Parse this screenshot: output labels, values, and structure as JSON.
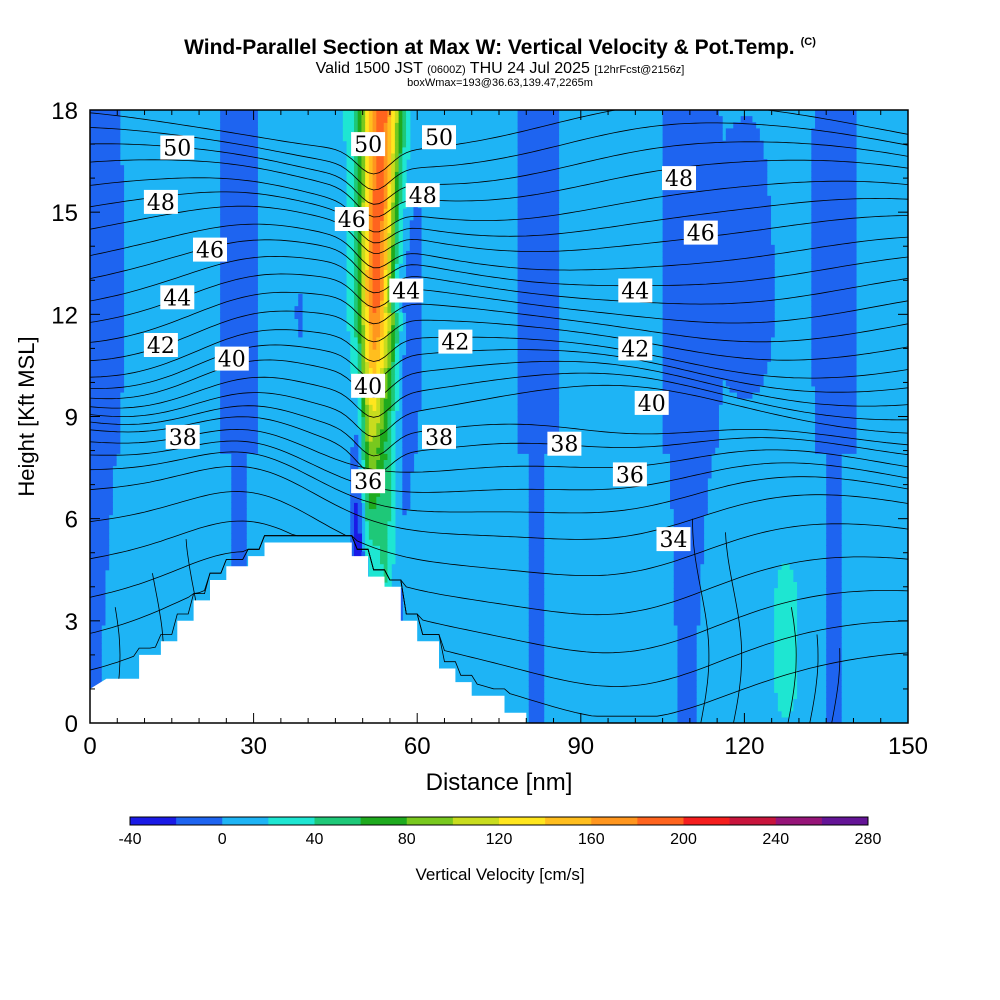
{
  "header": {
    "title": "Wind-Parallel Section at Max W: Vertical Velocity & Pot.Temp.",
    "copyright": "(C)",
    "valid_prefix": "Valid 1500 JST",
    "valid_utc": "(0600Z)",
    "valid_date": "THU 24 Jul 2025",
    "forecast": "[12hrFcst@2156z]",
    "boxwmax": "boxWmax=193@36.63,139.47,2265m"
  },
  "chart_data": {
    "type": "cross-section contour",
    "xlabel": "Distance [nm]",
    "ylabel": "Height [Kft MSL]",
    "xlim": [
      0,
      150
    ],
    "ylim": [
      0,
      18
    ],
    "xticks": [
      0,
      30,
      60,
      90,
      120,
      150
    ],
    "yticks": [
      0,
      3,
      6,
      9,
      12,
      15,
      18
    ],
    "colorbar": {
      "label": "Vertical Velocity [cm/s]",
      "ticks": [
        -40,
        0,
        40,
        80,
        120,
        160,
        200,
        240,
        280
      ],
      "bounds": [
        -40,
        -20,
        0,
        20,
        40,
        60,
        80,
        100,
        120,
        140,
        160,
        180,
        200,
        220,
        240,
        260,
        280
      ],
      "colors": [
        "#1a1ae6",
        "#1e64f0",
        "#1eb4f5",
        "#1ee6d2",
        "#1ec878",
        "#1eaa1e",
        "#78c81e",
        "#c8dc1e",
        "#ffe61e",
        "#ffbe1e",
        "#ff961e",
        "#ff641e",
        "#f51e1e",
        "#c8143c",
        "#961478",
        "#641496"
      ]
    },
    "theta_contour_labels": [
      {
        "label": "50",
        "x": 16,
        "y": 16.9
      },
      {
        "label": "50",
        "x": 51,
        "y": 17.0
      },
      {
        "label": "50",
        "x": 64,
        "y": 17.2
      },
      {
        "label": "48",
        "x": 13,
        "y": 15.3
      },
      {
        "label": "48",
        "x": 61,
        "y": 15.5
      },
      {
        "label": "48",
        "x": 108,
        "y": 16.0
      },
      {
        "label": "46",
        "x": 22,
        "y": 13.9
      },
      {
        "label": "46",
        "x": 48,
        "y": 14.8
      },
      {
        "label": "46",
        "x": 112,
        "y": 14.4
      },
      {
        "label": "44",
        "x": 16,
        "y": 12.5
      },
      {
        "label": "44",
        "x": 58,
        "y": 12.7
      },
      {
        "label": "44",
        "x": 100,
        "y": 12.7
      },
      {
        "label": "42",
        "x": 13,
        "y": 11.1
      },
      {
        "label": "42",
        "x": 67,
        "y": 11.2
      },
      {
        "label": "42",
        "x": 100,
        "y": 11.0
      },
      {
        "label": "40",
        "x": 26,
        "y": 10.7
      },
      {
        "label": "40",
        "x": 51,
        "y": 9.9
      },
      {
        "label": "40",
        "x": 103,
        "y": 9.4
      },
      {
        "label": "38",
        "x": 17,
        "y": 8.4
      },
      {
        "label": "38",
        "x": 64,
        "y": 8.4
      },
      {
        "label": "38",
        "x": 87,
        "y": 8.2
      },
      {
        "label": "36",
        "x": 51,
        "y": 7.1
      },
      {
        "label": "36",
        "x": 99,
        "y": 7.3
      },
      {
        "label": "34",
        "x": 107,
        "y": 5.4
      }
    ],
    "theta_base_heights": [
      1.5,
      2.4,
      3.3,
      4.3,
      5.3,
      6.2,
      6.8,
      7.3,
      7.8,
      8.3,
      8.7,
      9.1,
      9.5,
      9.9,
      10.3,
      10.7,
      11.2,
      11.7,
      12.2,
      12.7,
      13.2,
      13.7,
      14.3,
      14.8,
      15.3,
      15.9,
      16.4,
      16.9,
      17.4
    ],
    "terrain": [
      [
        0,
        1.0
      ],
      [
        3,
        1.3
      ],
      [
        9,
        1.3
      ],
      [
        9,
        2.0
      ],
      [
        13,
        2.0
      ],
      [
        13,
        2.4
      ],
      [
        16,
        2.4
      ],
      [
        16,
        3.0
      ],
      [
        19,
        3.0
      ],
      [
        19,
        3.6
      ],
      [
        22,
        3.6
      ],
      [
        22,
        4.2
      ],
      [
        25,
        4.2
      ],
      [
        25,
        4.6
      ],
      [
        29,
        4.6
      ],
      [
        29,
        4.9
      ],
      [
        32,
        4.9
      ],
      [
        32,
        5.3
      ],
      [
        48,
        5.3
      ],
      [
        48,
        4.9
      ],
      [
        51,
        4.9
      ],
      [
        51,
        4.3
      ],
      [
        54,
        4.3
      ],
      [
        54,
        4.0
      ],
      [
        57,
        4.0
      ],
      [
        57,
        3.0
      ],
      [
        60,
        3.0
      ],
      [
        60,
        2.4
      ],
      [
        64,
        2.4
      ],
      [
        64,
        1.6
      ],
      [
        67,
        1.6
      ],
      [
        67,
        1.2
      ],
      [
        70,
        1.2
      ],
      [
        70,
        0.8
      ],
      [
        76,
        0.8
      ],
      [
        76,
        0.3
      ],
      [
        80,
        0.3
      ],
      [
        80,
        0
      ]
    ],
    "updraft_core": {
      "x_center": 52,
      "max": 193,
      "units": "cm/s"
    },
    "downdraft_core": {
      "x_center": 49.5,
      "min": -40,
      "units": "cm/s"
    }
  },
  "colors": {
    "background": "#1eb4f5",
    "plot_border": "#000000",
    "contour_line": "#000000"
  }
}
